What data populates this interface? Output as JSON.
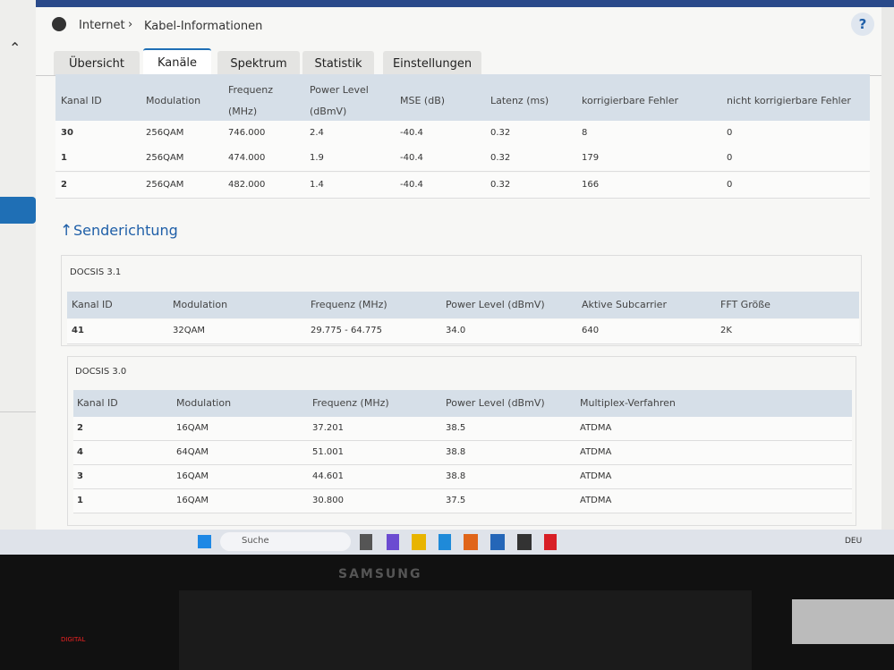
{
  "header": {
    "breadcrumb": [
      "Internet",
      "Kabel-Informationen"
    ],
    "help": "?"
  },
  "tabs": {
    "items": [
      "Übersicht",
      "Kanäle",
      "Spektrum",
      "Statistik",
      "Einstellungen"
    ],
    "active": 1
  },
  "downstream": {
    "columns": [
      "Kanal ID",
      "Modulation",
      "Frequenz (MHz)",
      "Power Level (dBmV)",
      "MSE (dB)",
      "Latenz (ms)",
      "korrigierbare Fehler",
      "nicht korrigierbare Fehler"
    ],
    "rows": [
      [
        "30",
        "256QAM",
        "746.000",
        "2.4",
        "-40.4",
        "0.32",
        "8",
        "0"
      ],
      [
        "1",
        "256QAM",
        "474.000",
        "1.9",
        "-40.4",
        "0.32",
        "179",
        "0"
      ],
      [
        "2",
        "256QAM",
        "482.000",
        "1.4",
        "-40.4",
        "0.32",
        "166",
        "0"
      ]
    ]
  },
  "upstream": {
    "title": "Senderichtung",
    "docsis31": {
      "label": "DOCSIS 3.1",
      "columns": [
        "Kanal ID",
        "Modulation",
        "Frequenz (MHz)",
        "Power Level (dBmV)",
        "Aktive Subcarrier",
        "FFT Größe"
      ],
      "rows": [
        [
          "41",
          "32QAM",
          "29.775 - 64.775",
          "34.0",
          "640",
          "2K"
        ]
      ]
    },
    "docsis30": {
      "label": "DOCSIS 3.0",
      "columns": [
        "Kanal ID",
        "Modulation",
        "Frequenz (MHz)",
        "Power Level (dBmV)",
        "Multiplex-Verfahren"
      ],
      "rows": [
        [
          "2",
          "16QAM",
          "37.201",
          "38.5",
          "ATDMA"
        ],
        [
          "4",
          "64QAM",
          "51.001",
          "38.8",
          "ATDMA"
        ],
        [
          "3",
          "16QAM",
          "44.601",
          "38.8",
          "ATDMA"
        ],
        [
          "1",
          "16QAM",
          "30.800",
          "37.5",
          "ATDMA"
        ]
      ]
    }
  },
  "taskbar": {
    "search": "Suche",
    "language": "DEU"
  },
  "monitor": {
    "brand": "SAMSUNG",
    "indicator": "DIGITAL"
  }
}
